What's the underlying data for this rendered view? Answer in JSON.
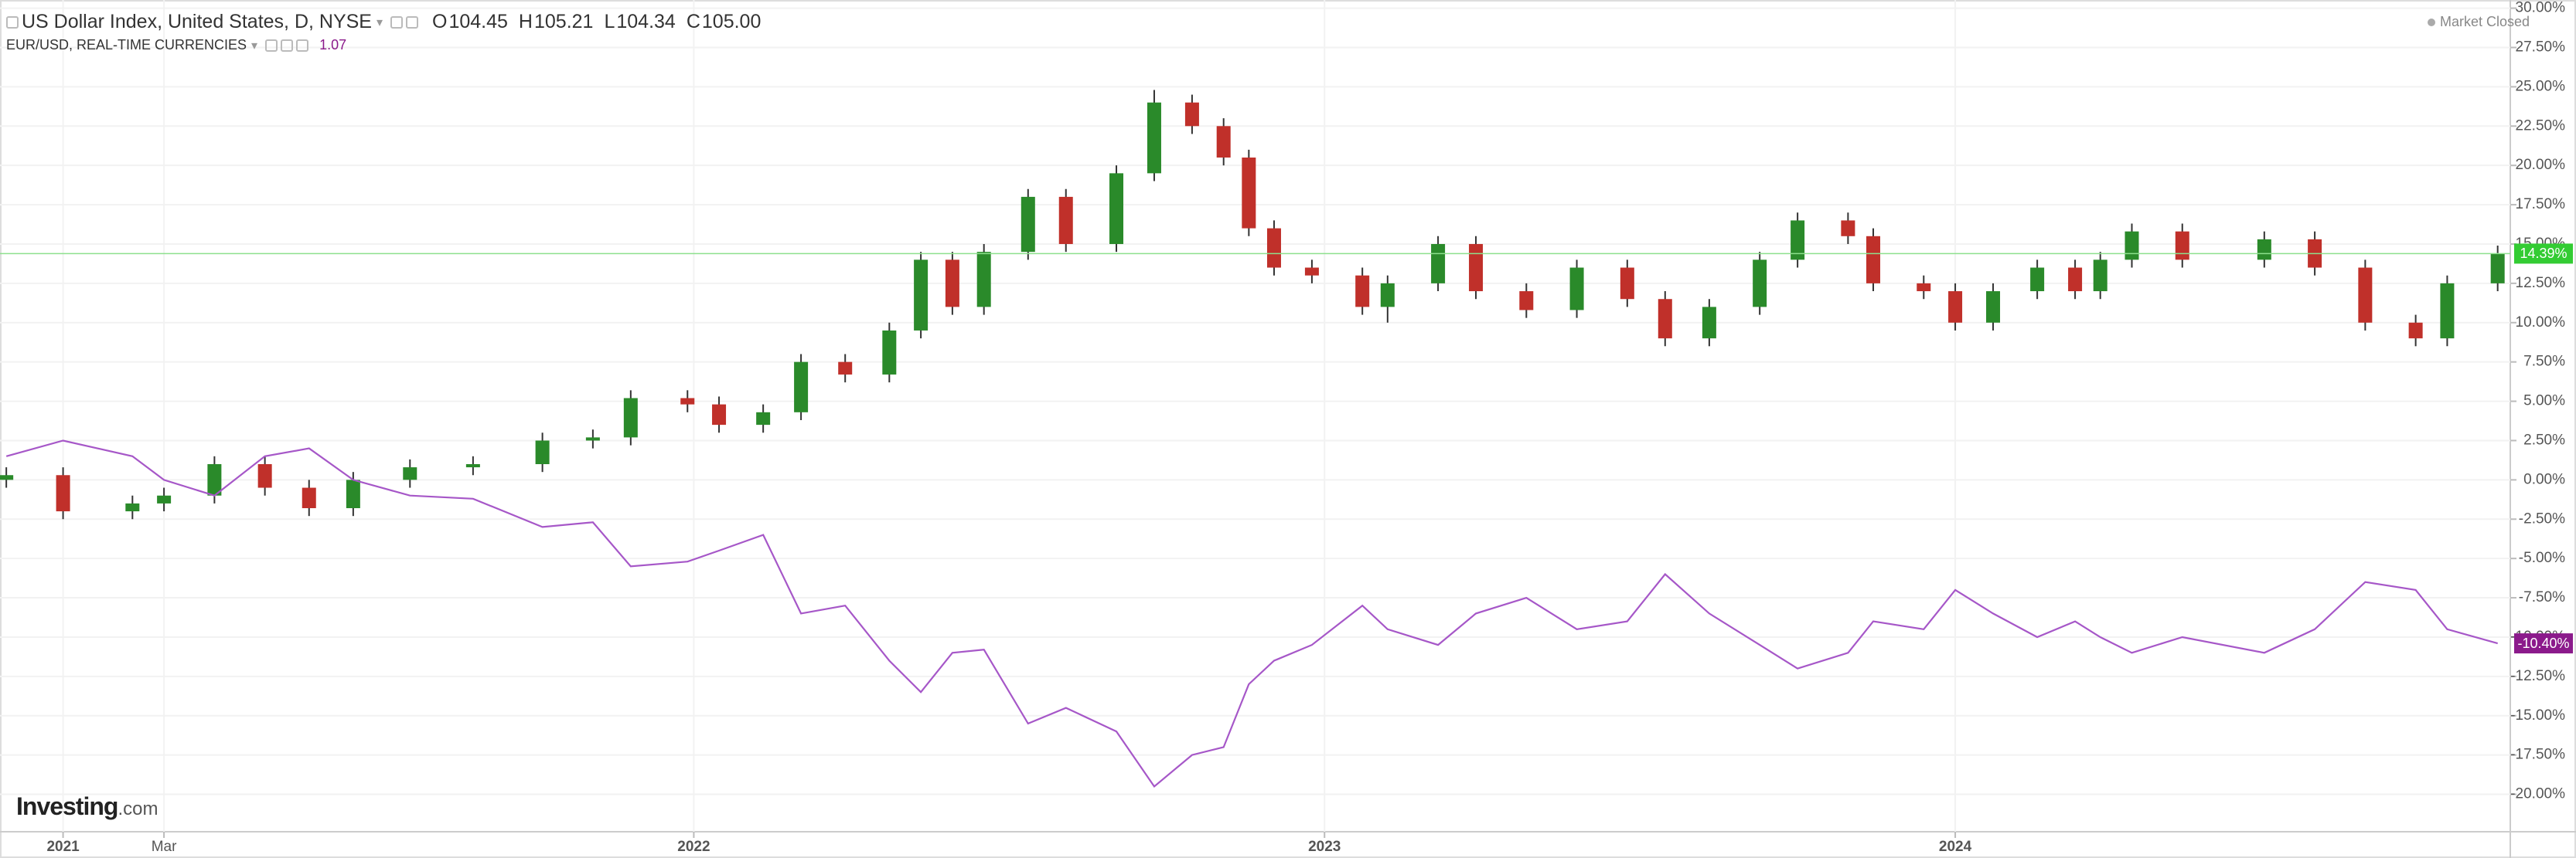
{
  "header": {
    "quote": [
      {
        "label": "O",
        "value": "104.45"
      },
      {
        "label": "H",
        "value": "105.21"
      },
      {
        "label": "L",
        "value": "104.34"
      },
      {
        "label": "C",
        "value": "105.00"
      }
    ],
    "eur_quote": "1.07",
    "status": "Market Closed",
    "logo": {
      "brand": "Investing",
      "suffix": ".com"
    }
  },
  "chart_data": {
    "type": "candlestick",
    "x": [
      2020.91,
      2021.0,
      2021.11,
      2021.16,
      2021.24,
      2021.32,
      2021.39,
      2021.46,
      2021.55,
      2021.65,
      2021.76,
      2021.84,
      2021.9,
      2021.99,
      2022.04,
      2022.11,
      2022.17,
      2022.24,
      2022.31,
      2022.36,
      2022.41,
      2022.46,
      2022.53,
      2022.59,
      2022.67,
      2022.73,
      2022.79,
      2022.84,
      2022.88,
      2022.92,
      2022.98,
      2023.06,
      2023.1,
      2023.18,
      2023.24,
      2023.32,
      2023.4,
      2023.48,
      2023.54,
      2023.61,
      2023.69,
      2023.75,
      2023.83,
      2023.87,
      2023.95,
      2024.0,
      2024.06,
      2024.13,
      2024.19,
      2024.23,
      2024.28,
      2024.36,
      2024.49,
      2024.57,
      2024.65,
      2024.73,
      2024.78,
      2024.86
    ],
    "series": [
      {
        "name": "US Dollar Index, United States, D, NYSE",
        "type": "candlestick",
        "up_color": "#2a8a2a",
        "down_color": "#c0302a",
        "wick_color": "#333333",
        "last_label": "14.39%",
        "label_color": "#33cc33",
        "open": [
          0,
          0.3,
          -2,
          -1.5,
          -1,
          1,
          -0.5,
          -1.8,
          0,
          0.8,
          1,
          2.5,
          2.7,
          5.2,
          4.8,
          3.5,
          4.3,
          7.5,
          6.7,
          9.5,
          14,
          11,
          14.5,
          18,
          15,
          19.5,
          24,
          22.5,
          20.5,
          16,
          13.5,
          13,
          11,
          12.5,
          15,
          12,
          10.8,
          13.5,
          11.5,
          9,
          11,
          14,
          16.5,
          15.5,
          12.5,
          12,
          10,
          12,
          13.5,
          12,
          14,
          15.8,
          14,
          15.3,
          13.5,
          10,
          9,
          12.5
        ],
        "high": [
          0.8,
          0.8,
          -1.0,
          -0.5,
          1.5,
          1.5,
          0.0,
          0.5,
          1.3,
          1.5,
          3.0,
          3.2,
          5.7,
          5.7,
          5.3,
          4.8,
          8.0,
          8.0,
          10.0,
          14.5,
          14.5,
          15.0,
          18.5,
          18.5,
          20.0,
          24.8,
          24.5,
          23.0,
          21.0,
          16.5,
          14.0,
          13.5,
          13.0,
          15.5,
          15.5,
          12.5,
          14.0,
          14.0,
          12.0,
          11.5,
          14.5,
          17.0,
          17.0,
          16.0,
          13.0,
          12.5,
          12.5,
          14.0,
          14.0,
          14.5,
          16.3,
          16.3,
          15.8,
          15.8,
          14.0,
          10.5,
          13.0,
          14.9
        ],
        "low": [
          -0.5,
          -2.5,
          -2.5,
          -2.0,
          -1.5,
          -1.0,
          -2.3,
          -2.3,
          -0.5,
          0.3,
          0.5,
          2.0,
          2.2,
          4.3,
          3.0,
          3.0,
          3.8,
          6.2,
          6.2,
          9.0,
          10.5,
          10.5,
          14.0,
          14.5,
          14.5,
          19.0,
          22.0,
          20.0,
          15.5,
          13.0,
          12.5,
          10.5,
          10.0,
          12.0,
          11.5,
          10.3,
          10.3,
          11.0,
          8.5,
          8.5,
          10.5,
          13.5,
          15.0,
          12.0,
          11.5,
          9.5,
          9.5,
          11.5,
          11.5,
          11.5,
          13.5,
          13.5,
          13.5,
          13.0,
          9.5,
          8.5,
          8.5,
          12.0
        ],
        "close": [
          0.3,
          -2,
          -1.5,
          -1,
          1,
          -0.5,
          -1.8,
          0,
          0.8,
          1,
          2.5,
          2.7,
          5.2,
          4.8,
          3.5,
          4.3,
          7.5,
          6.7,
          9.5,
          14,
          11,
          14.5,
          18,
          15,
          19.5,
          24,
          22.5,
          20.5,
          16,
          13.5,
          13,
          11,
          12.5,
          15,
          12,
          10.8,
          13.5,
          11.5,
          9,
          11,
          14,
          16.5,
          15.5,
          12.5,
          12,
          10,
          12,
          13.5,
          12,
          14,
          15.8,
          14,
          15.3,
          13.5,
          10,
          9,
          12.5,
          14.39
        ]
      },
      {
        "name": "EUR/USD, REAL-TIME CURRENCIES",
        "type": "line",
        "color": "#a657c8",
        "last_label": "-10.40%",
        "label_color": "#8b1a8b",
        "values": [
          1.5,
          2.5,
          1.5,
          0,
          -1.0,
          1.5,
          2.0,
          0,
          -1.0,
          -1.2,
          -3.0,
          -2.7,
          -5.5,
          -5.2,
          -4.5,
          -3.5,
          -8.5,
          -8.0,
          -11.5,
          -13.5,
          -11.0,
          -10.8,
          -15.5,
          -14.5,
          -16.0,
          -19.5,
          -17.5,
          -17.0,
          -13.0,
          -11.5,
          -10.5,
          -8.0,
          -9.5,
          -10.5,
          -8.5,
          -7.5,
          -9.5,
          -9.0,
          -6.0,
          -8.5,
          -10.5,
          -12.0,
          -11.0,
          -9.0,
          -9.5,
          -7.0,
          -8.5,
          -10.0,
          -9.0,
          -10.0,
          -11.0,
          -10.0,
          -11.0,
          -9.5,
          -6.5,
          -7.0,
          -9.5,
          -10.4
        ]
      }
    ],
    "xlim": [
      2020.9,
      2024.88
    ],
    "xticks": [
      {
        "value": 2021,
        "label": "2021"
      },
      {
        "value": 2021.16,
        "label": "Mar"
      },
      {
        "value": 2022,
        "label": "2022"
      },
      {
        "value": 2023,
        "label": "2023"
      },
      {
        "value": 2024,
        "label": "2024"
      }
    ],
    "ylim": [
      -22.38,
      30.52
    ],
    "yticks": [
      {
        "value": 30,
        "label": "30.00%"
      },
      {
        "value": 27.5,
        "label": "27.50%"
      },
      {
        "value": 25,
        "label": "25.00%"
      },
      {
        "value": 22.5,
        "label": "22.50%"
      },
      {
        "value": 20,
        "label": "20.00%"
      },
      {
        "value": 17.5,
        "label": "17.50%"
      },
      {
        "value": 15,
        "label": "15.00%"
      },
      {
        "value": 12.5,
        "label": "12.50%"
      },
      {
        "value": 10,
        "label": "10.00%"
      },
      {
        "value": 7.5,
        "label": "7.50%"
      },
      {
        "value": 5,
        "label": "5.00%"
      },
      {
        "value": 2.5,
        "label": "2.50%"
      },
      {
        "value": 0,
        "label": "0.00%"
      },
      {
        "value": -2.5,
        "label": "-2.50%"
      },
      {
        "value": -5,
        "label": "-5.00%"
      },
      {
        "value": -7.5,
        "label": "-7.50%"
      },
      {
        "value": -10,
        "label": "-10.00%"
      },
      {
        "value": -12.5,
        "label": "-12.50%"
      },
      {
        "value": -15,
        "label": "-15.00%"
      },
      {
        "value": -17.5,
        "label": "-17.50%"
      },
      {
        "value": -20,
        "label": "-20.00%"
      }
    ],
    "grid": true
  }
}
